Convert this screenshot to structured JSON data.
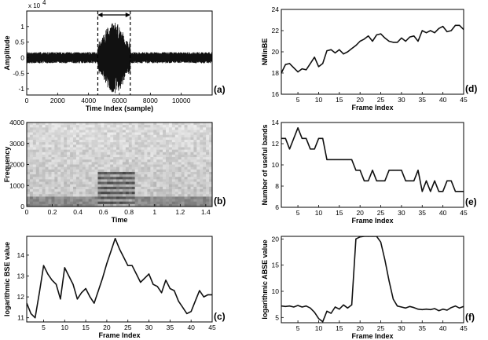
{
  "figure": {
    "background": "#ffffff",
    "line_color": "#111111"
  },
  "chart_data": [
    {
      "id": "a",
      "type": "line",
      "panel_label": "(a)",
      "xlabel": "Time Index (sample)",
      "ylabel": "Amplitude",
      "scale_note": "x 10",
      "scale_exponent": "4",
      "xlim": [
        0,
        12000
      ],
      "ylim": [
        -1.2,
        1.5
      ],
      "x_ticks": [
        0,
        2000,
        4000,
        6000,
        8000,
        10000
      ],
      "x_tick_labels": [
        "0",
        "2000",
        "4000",
        "6000",
        "8000",
        "10000"
      ],
      "y_ticks": [
        -1,
        -0.5,
        0,
        0.5,
        1
      ],
      "y_tick_labels": [
        "-1",
        "-0.5",
        "0",
        "0.5",
        "1"
      ],
      "annotation": {
        "type": "interval-marker",
        "x_start": 4600,
        "x_end": 6700
      },
      "signal": {
        "n_samples": 12000,
        "background_amplitude": 0.18,
        "burst_start": 4600,
        "burst_end": 6700,
        "burst_peak_amplitude": 1.15
      }
    },
    {
      "id": "b",
      "type": "heatmap",
      "panel_label": "(b)",
      "xlabel": "Time",
      "ylabel": "Frequency",
      "xlim": [
        0,
        1.45
      ],
      "ylim": [
        0,
        4000
      ],
      "x_ticks": [
        0,
        0.2,
        0.4,
        0.6,
        0.8,
        1,
        1.2,
        1.4
      ],
      "x_tick_labels": [
        "0",
        "0.2",
        "0.4",
        "0.6",
        "0.8",
        "1",
        "1.2",
        "1.4"
      ],
      "y_ticks": [
        0,
        1000,
        2000,
        3000,
        4000
      ],
      "y_tick_labels": [
        "0",
        "1000",
        "2000",
        "3000",
        "4000"
      ],
      "colormap": "gray",
      "harmonic_region": {
        "t_start": 0.56,
        "t_end": 0.85,
        "f_max": 1600
      }
    },
    {
      "id": "c",
      "type": "line",
      "panel_label": "(c)",
      "xlabel": "Frame Index",
      "ylabel": "logarithmic BSE value",
      "xlim": [
        1,
        45
      ],
      "ylim": [
        10.8,
        14.9
      ],
      "x_ticks": [
        5,
        10,
        15,
        20,
        25,
        30,
        35,
        40,
        45
      ],
      "x_tick_labels": [
        "5",
        "10",
        "15",
        "20",
        "25",
        "30",
        "35",
        "40",
        "45"
      ],
      "y_ticks": [
        11,
        12,
        13,
        14
      ],
      "y_tick_labels": [
        "11",
        "12",
        "13",
        "14"
      ],
      "x": [
        1,
        2,
        3,
        4,
        5,
        6,
        7,
        8,
        9,
        10,
        11,
        12,
        13,
        14,
        15,
        16,
        17,
        18,
        19,
        20,
        21,
        22,
        23,
        24,
        25,
        26,
        27,
        28,
        29,
        30,
        31,
        32,
        33,
        34,
        35,
        36,
        37,
        38,
        39,
        40,
        41,
        42,
        43,
        44,
        45
      ],
      "y": [
        11.7,
        11.2,
        11.0,
        12.2,
        13.5,
        13.1,
        12.8,
        12.6,
        11.9,
        13.4,
        13.0,
        12.6,
        11.9,
        12.2,
        12.4,
        12.0,
        11.7,
        12.3,
        12.9,
        13.6,
        14.2,
        14.8,
        14.3,
        13.9,
        13.5,
        13.5,
        13.1,
        12.7,
        12.9,
        13.1,
        12.6,
        12.5,
        12.2,
        12.8,
        12.4,
        12.3,
        11.8,
        11.5,
        11.2,
        11.3,
        11.8,
        12.3,
        12.0,
        12.1,
        12.1
      ]
    },
    {
      "id": "d",
      "type": "line",
      "panel_label": "(d)",
      "xlabel": "Frame Index",
      "ylabel": "NMinBE",
      "xlim": [
        1,
        45
      ],
      "ylim": [
        16,
        24
      ],
      "x_ticks": [
        5,
        10,
        15,
        20,
        25,
        30,
        35,
        40,
        45
      ],
      "x_tick_labels": [
        "5",
        "10",
        "15",
        "20",
        "25",
        "30",
        "35",
        "40",
        "45"
      ],
      "y_ticks": [
        16,
        18,
        20,
        22,
        24
      ],
      "y_tick_labels": [
        "16",
        "18",
        "20",
        "22",
        "24"
      ],
      "x": [
        1,
        2,
        3,
        4,
        5,
        6,
        7,
        8,
        9,
        10,
        11,
        12,
        13,
        14,
        15,
        16,
        17,
        18,
        19,
        20,
        21,
        22,
        23,
        24,
        25,
        26,
        27,
        28,
        29,
        30,
        31,
        32,
        33,
        34,
        35,
        36,
        37,
        38,
        39,
        40,
        41,
        42,
        43,
        44,
        45
      ],
      "y": [
        18.0,
        18.8,
        18.9,
        18.5,
        18.1,
        18.4,
        18.3,
        18.9,
        19.5,
        18.6,
        18.9,
        20.1,
        20.2,
        19.9,
        20.2,
        19.8,
        20.0,
        20.3,
        20.6,
        21.0,
        21.2,
        21.5,
        21.0,
        21.6,
        21.7,
        21.3,
        21.0,
        20.9,
        20.9,
        21.3,
        21.0,
        21.4,
        21.5,
        21.0,
        22.0,
        21.8,
        22.0,
        21.8,
        22.2,
        22.4,
        21.9,
        22.0,
        22.5,
        22.5,
        22.1
      ]
    },
    {
      "id": "e",
      "type": "line",
      "panel_label": "(e)",
      "xlabel": "Frame Index",
      "ylabel": "Number of useful bands",
      "xlim": [
        1,
        45
      ],
      "ylim": [
        6,
        14
      ],
      "x_ticks": [
        5,
        10,
        15,
        20,
        25,
        30,
        35,
        40,
        45
      ],
      "x_tick_labels": [
        "5",
        "10",
        "15",
        "20",
        "25",
        "30",
        "35",
        "40",
        "45"
      ],
      "y_ticks": [
        6,
        8,
        10,
        12,
        14
      ],
      "y_tick_labels": [
        "6",
        "8",
        "10",
        "12",
        "14"
      ],
      "x": [
        1,
        2,
        3,
        4,
        5,
        6,
        7,
        8,
        9,
        10,
        11,
        12,
        13,
        14,
        15,
        16,
        17,
        18,
        19,
        20,
        21,
        22,
        23,
        24,
        25,
        26,
        27,
        28,
        29,
        30,
        31,
        32,
        33,
        34,
        35,
        36,
        37,
        38,
        39,
        40,
        41,
        42,
        43,
        44,
        45
      ],
      "y": [
        12.5,
        12.5,
        11.5,
        12.5,
        13.5,
        12.5,
        12.5,
        11.5,
        11.5,
        12.5,
        12.5,
        10.5,
        10.5,
        10.5,
        10.5,
        10.5,
        10.5,
        10.5,
        9.5,
        9.5,
        8.5,
        8.5,
        9.5,
        8.5,
        8.5,
        8.5,
        9.5,
        9.5,
        9.5,
        9.5,
        8.5,
        8.5,
        8.5,
        9.5,
        7.5,
        8.5,
        7.5,
        8.5,
        7.5,
        7.5,
        8.5,
        8.5,
        7.5,
        7.5,
        7.5
      ]
    },
    {
      "id": "f",
      "type": "line",
      "panel_label": "(f)",
      "xlabel": "Frame Index",
      "ylabel": "logarithmic ABSE value",
      "xlim": [
        1,
        45
      ],
      "ylim": [
        4,
        20.5
      ],
      "x_ticks": [
        5,
        10,
        15,
        20,
        25,
        30,
        35,
        40,
        45
      ],
      "x_tick_labels": [
        "5",
        "10",
        "15",
        "20",
        "25",
        "30",
        "35",
        "40",
        "45"
      ],
      "y_ticks": [
        5,
        10,
        15,
        20
      ],
      "y_tick_labels": [
        "5",
        "10",
        "15",
        "20"
      ],
      "x": [
        1,
        2,
        3,
        4,
        5,
        6,
        7,
        8,
        9,
        10,
        11,
        12,
        13,
        14,
        15,
        16,
        17,
        18,
        19,
        20,
        21,
        22,
        23,
        24,
        25,
        26,
        27,
        28,
        29,
        30,
        31,
        32,
        33,
        34,
        35,
        36,
        37,
        38,
        39,
        40,
        41,
        42,
        43,
        44,
        45
      ],
      "y": [
        7.2,
        7.1,
        7.2,
        7.0,
        7.3,
        7.0,
        7.2,
        6.8,
        6.0,
        4.8,
        4.2,
        6.2,
        5.8,
        7.0,
        6.6,
        7.4,
        6.8,
        7.4,
        20.0,
        20.4,
        20.5,
        20.5,
        20.5,
        20.5,
        19.4,
        16.0,
        12.0,
        8.5,
        7.2,
        7.0,
        6.8,
        7.1,
        6.9,
        6.6,
        6.5,
        6.6,
        6.5,
        6.7,
        6.3,
        6.6,
        6.4,
        6.9,
        7.2,
        6.8,
        7.1
      ]
    }
  ]
}
